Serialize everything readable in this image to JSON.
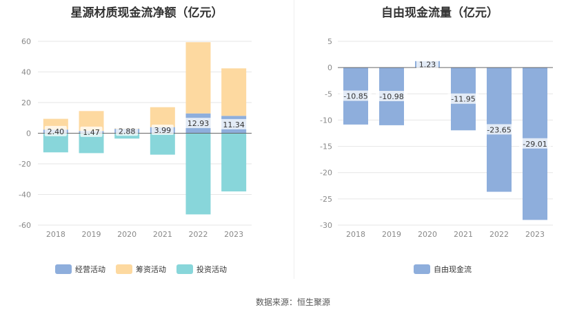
{
  "source_text": "数据来源：恒生聚源",
  "chart_data": [
    {
      "type": "bar",
      "stacked": true,
      "title": "星源材质现金流净额（亿元）",
      "categories": [
        "2018",
        "2019",
        "2020",
        "2021",
        "2022",
        "2023"
      ],
      "ylim": [
        -60,
        60
      ],
      "yticks": [
        60,
        40,
        20,
        0,
        -20,
        -40,
        -60
      ],
      "grid": true,
      "legend_position": "bottom",
      "series": [
        {
          "name": "经营活动",
          "color": "#8eaedc",
          "values": [
            2.4,
            1.47,
            2.88,
            3.99,
            12.93,
            11.34
          ],
          "show_labels": true
        },
        {
          "name": "筹资活动",
          "color": "#fdd9a0",
          "values": [
            7.0,
            13.0,
            0.3,
            13.0,
            46.5,
            31.0
          ],
          "show_labels": false
        },
        {
          "name": "投资活动",
          "color": "#88d6da",
          "values": [
            -12.5,
            -13.0,
            -3.5,
            -14.0,
            -53.0,
            -38.0
          ],
          "show_labels": false
        }
      ]
    },
    {
      "type": "bar",
      "title": "自由现金流量（亿元）",
      "categories": [
        "2018",
        "2019",
        "2020",
        "2021",
        "2022",
        "2023"
      ],
      "ylim": [
        -30,
        5
      ],
      "yticks": [
        5,
        0,
        -5,
        -10,
        -15,
        -20,
        -25,
        -30
      ],
      "grid": true,
      "legend_position": "bottom",
      "series": [
        {
          "name": "自由现金流",
          "color": "#8eaedc",
          "values": [
            -10.85,
            -10.98,
            1.23,
            -11.95,
            -23.65,
            -29.01
          ],
          "show_labels": true
        }
      ]
    }
  ]
}
